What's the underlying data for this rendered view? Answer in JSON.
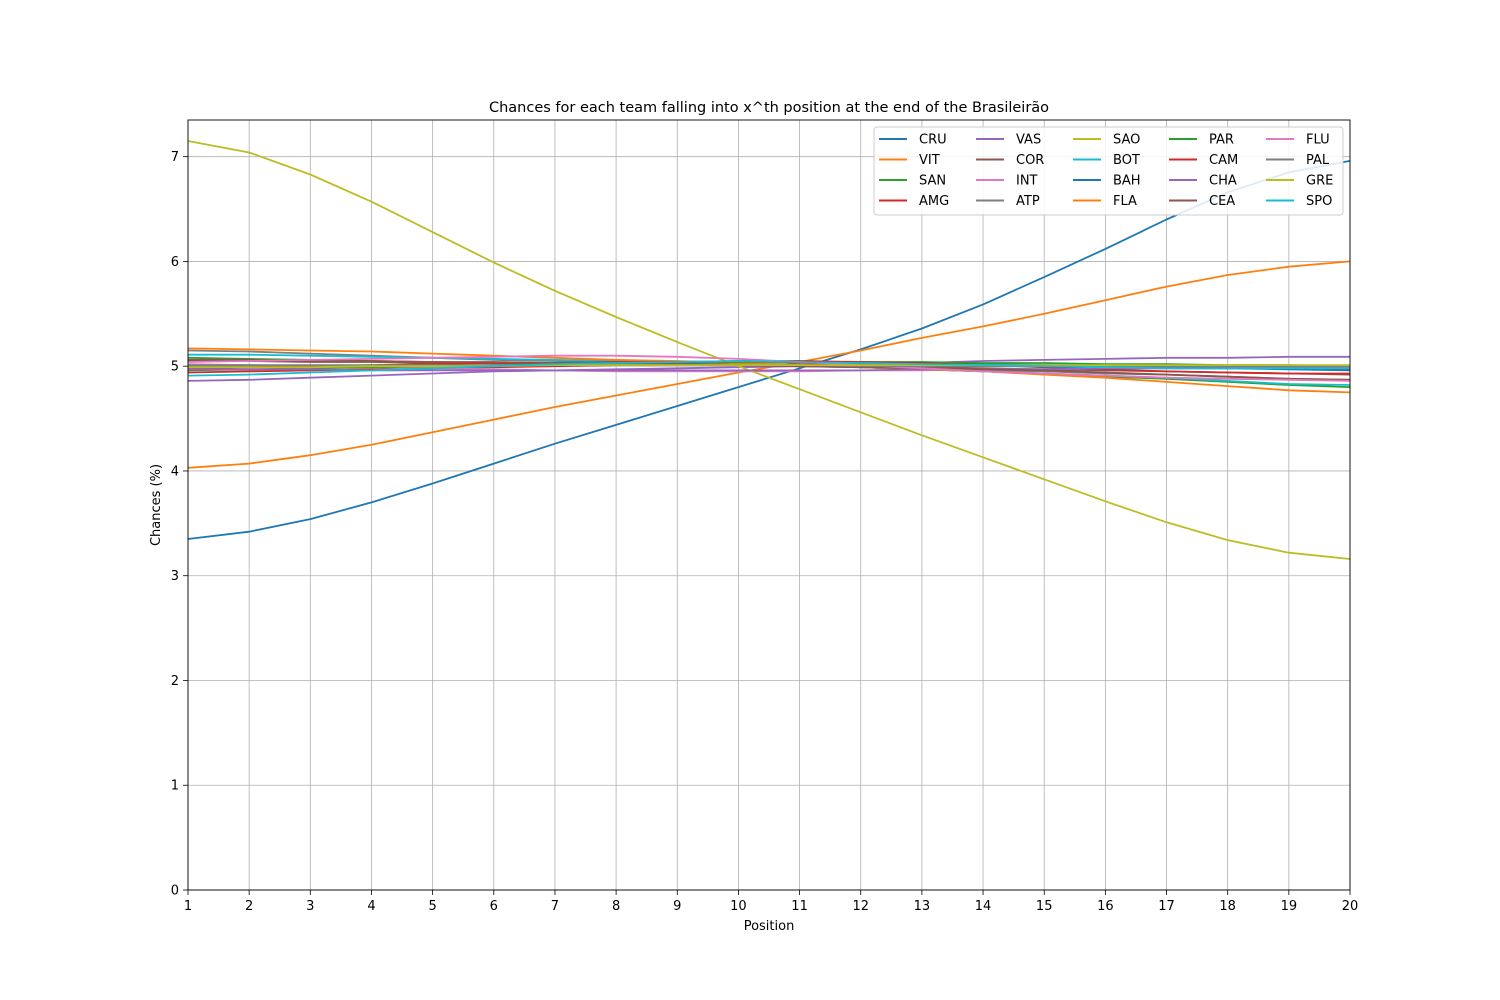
{
  "chart_data": {
    "type": "line",
    "title": "Chances for each team falling into x^th position at the end of the Brasileirão",
    "xlabel": "Position",
    "ylabel": "Chances (%)",
    "xlim": [
      1,
      20
    ],
    "ylim": [
      0,
      7.35
    ],
    "grid": true,
    "legend_position": "top-right",
    "x": [
      1,
      2,
      3,
      4,
      5,
      6,
      7,
      8,
      9,
      10,
      11,
      12,
      13,
      14,
      15,
      16,
      17,
      18,
      19,
      20
    ],
    "x_ticks": [
      "1",
      "2",
      "3",
      "4",
      "5",
      "6",
      "7",
      "8",
      "9",
      "10",
      "11",
      "12",
      "13",
      "14",
      "15",
      "16",
      "17",
      "18",
      "19",
      "20"
    ],
    "y_ticks": [
      0,
      1,
      2,
      3,
      4,
      5,
      6,
      7
    ],
    "series": [
      {
        "name": "CRU",
        "color": "#1f77b4",
        "values": [
          3.35,
          3.42,
          3.54,
          3.7,
          3.88,
          4.07,
          4.26,
          4.44,
          4.62,
          4.8,
          4.98,
          5.16,
          5.36,
          5.59,
          5.85,
          6.12,
          6.4,
          6.66,
          6.85,
          6.96
        ]
      },
      {
        "name": "VIT",
        "color": "#ff7f0e",
        "values": [
          4.03,
          4.07,
          4.15,
          4.25,
          4.37,
          4.49,
          4.61,
          4.72,
          4.83,
          4.94,
          5.04,
          5.15,
          5.27,
          5.38,
          5.5,
          5.63,
          5.76,
          5.87,
          5.95,
          6.0
        ]
      },
      {
        "name": "SAN",
        "color": "#2ca02c",
        "values": [
          5.08,
          5.07,
          5.06,
          5.05,
          5.04,
          5.03,
          5.03,
          5.02,
          5.02,
          5.01,
          5.0,
          4.99,
          4.97,
          4.95,
          4.93,
          4.9,
          4.88,
          4.85,
          4.82,
          4.8
        ]
      },
      {
        "name": "AMG",
        "color": "#d62728",
        "values": [
          4.94,
          4.95,
          4.96,
          4.97,
          4.98,
          4.99,
          5.0,
          5.01,
          5.01,
          5.02,
          5.02,
          5.02,
          5.02,
          5.02,
          5.01,
          5.01,
          5.0,
          4.99,
          4.98,
          4.97
        ]
      },
      {
        "name": "VAS",
        "color": "#9467bd",
        "values": [
          4.86,
          4.87,
          4.89,
          4.91,
          4.93,
          4.95,
          4.96,
          4.97,
          4.98,
          4.99,
          5.0,
          5.01,
          5.03,
          5.05,
          5.06,
          5.07,
          5.08,
          5.08,
          5.09,
          5.09
        ]
      },
      {
        "name": "COR",
        "color": "#8c564b",
        "values": [
          5.05,
          5.05,
          5.04,
          5.04,
          5.03,
          5.03,
          5.02,
          5.02,
          5.01,
          5.01,
          5.0,
          5.0,
          4.99,
          4.98,
          4.97,
          4.96,
          4.95,
          4.94,
          4.93,
          4.92
        ]
      },
      {
        "name": "INT",
        "color": "#e377c2",
        "values": [
          5.02,
          5.01,
          5.0,
          4.99,
          4.98,
          4.97,
          4.96,
          4.95,
          4.95,
          4.95,
          4.95,
          4.96,
          4.96,
          4.97,
          4.97,
          4.98,
          4.98,
          4.98,
          4.99,
          4.99
        ]
      },
      {
        "name": "ATP",
        "color": "#7f7f7f",
        "values": [
          5.15,
          5.14,
          5.12,
          5.1,
          5.08,
          5.06,
          5.05,
          5.03,
          5.02,
          5.01,
          5.0,
          4.99,
          4.98,
          4.96,
          4.95,
          4.93,
          4.92,
          4.9,
          4.88,
          4.87
        ]
      },
      {
        "name": "SAO",
        "color": "#bcbd22",
        "values": [
          7.15,
          7.04,
          6.83,
          6.57,
          6.28,
          5.99,
          5.72,
          5.47,
          5.23,
          5.0,
          4.78,
          4.56,
          4.34,
          4.13,
          3.92,
          3.71,
          3.51,
          3.34,
          3.22,
          3.16
        ]
      },
      {
        "name": "BOT",
        "color": "#17becf",
        "values": [
          5.11,
          5.11,
          5.1,
          5.09,
          5.08,
          5.07,
          5.06,
          5.05,
          5.04,
          5.03,
          5.01,
          4.99,
          4.97,
          4.95,
          4.93,
          4.91,
          4.89,
          4.86,
          4.83,
          4.82
        ]
      },
      {
        "name": "BAH",
        "color": "#1f77b4",
        "values": [
          5.0,
          5.0,
          5.0,
          5.0,
          5.0,
          5.01,
          5.01,
          5.02,
          5.03,
          5.04,
          5.04,
          5.03,
          5.02,
          5.02,
          5.01,
          5.0,
          4.99,
          4.98,
          4.97,
          4.96
        ]
      },
      {
        "name": "FLA",
        "color": "#ff7f0e",
        "values": [
          5.17,
          5.16,
          5.15,
          5.14,
          5.12,
          5.1,
          5.08,
          5.06,
          5.05,
          5.03,
          5.01,
          4.99,
          4.97,
          4.95,
          4.92,
          4.89,
          4.85,
          4.81,
          4.77,
          4.75
        ]
      },
      {
        "name": "PAR",
        "color": "#2ca02c",
        "values": [
          4.96,
          4.97,
          4.98,
          4.99,
          5.0,
          5.01,
          5.02,
          5.03,
          5.04,
          5.04,
          5.04,
          5.04,
          5.04,
          5.03,
          5.03,
          5.02,
          5.02,
          5.01,
          5.01,
          5.0
        ]
      },
      {
        "name": "CAM",
        "color": "#d62728",
        "values": [
          4.98,
          4.99,
          5.0,
          5.01,
          5.02,
          5.03,
          5.03,
          5.04,
          5.04,
          5.05,
          5.05,
          5.04,
          5.03,
          5.01,
          4.99,
          4.97,
          4.95,
          4.94,
          4.93,
          4.93
        ]
      },
      {
        "name": "CHA",
        "color": "#9467bd",
        "values": [
          4.97,
          4.97,
          4.97,
          4.96,
          4.96,
          4.96,
          4.96,
          4.96,
          4.96,
          4.96,
          4.96,
          4.96,
          4.97,
          4.97,
          4.97,
          4.98,
          4.98,
          4.98,
          4.99,
          4.99
        ]
      },
      {
        "name": "CEA",
        "color": "#8c564b",
        "values": [
          5.06,
          5.06,
          5.05,
          5.05,
          5.04,
          5.04,
          5.03,
          5.03,
          5.02,
          5.01,
          5.0,
          4.99,
          4.98,
          4.97,
          4.96,
          4.94,
          4.92,
          4.9,
          4.88,
          4.87
        ]
      },
      {
        "name": "FLU",
        "color": "#e377c2",
        "values": [
          5.04,
          5.05,
          5.06,
          5.07,
          5.08,
          5.09,
          5.1,
          5.1,
          5.09,
          5.07,
          5.04,
          5.01,
          4.98,
          4.95,
          4.93,
          4.91,
          4.89,
          4.88,
          4.87,
          4.86
        ]
      },
      {
        "name": "PAL",
        "color": "#7f7f7f",
        "values": [
          5.01,
          5.01,
          5.01,
          5.01,
          5.01,
          5.01,
          5.01,
          5.01,
          5.01,
          5.01,
          5.01,
          5.0,
          5.0,
          5.0,
          5.0,
          5.0,
          5.0,
          5.0,
          5.0,
          5.0
        ]
      },
      {
        "name": "GRE",
        "color": "#bcbd22",
        "values": [
          4.99,
          4.99,
          4.99,
          5.0,
          5.0,
          5.0,
          5.01,
          5.01,
          5.01,
          5.01,
          5.01,
          5.01,
          5.01,
          5.01,
          5.01,
          5.01,
          5.01,
          5.01,
          5.01,
          5.01
        ]
      },
      {
        "name": "SPO",
        "color": "#17becf",
        "values": [
          4.91,
          4.92,
          4.94,
          4.96,
          4.98,
          5.0,
          5.02,
          5.03,
          5.04,
          5.05,
          5.04,
          5.03,
          5.02,
          5.01,
          5.0,
          4.99,
          4.98,
          4.98,
          4.98,
          4.98
        ]
      }
    ]
  }
}
